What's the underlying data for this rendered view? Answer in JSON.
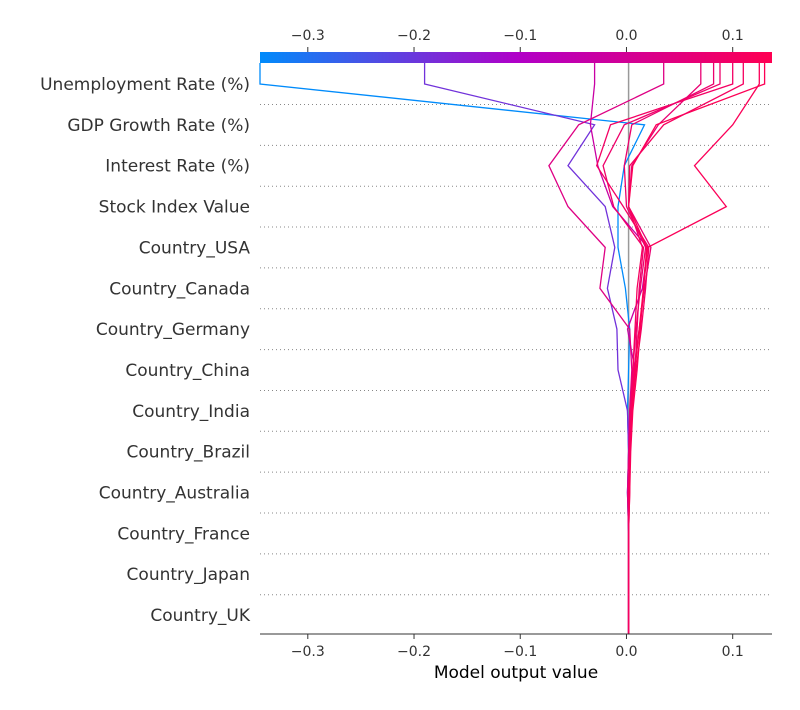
{
  "chart_data": {
    "type": "line",
    "subtype": "shap-decision-plot",
    "xlabel": "Model output value",
    "xlim": [
      -0.345,
      0.137
    ],
    "x_ticks": [
      -0.3,
      -0.2,
      -0.1,
      0.0,
      0.1
    ],
    "x_tick_labels": [
      "−0.3",
      "−0.2",
      "−0.1",
      "0.0",
      "0.1"
    ],
    "base_value": 0.002,
    "features": [
      "Unemployment Rate (%)",
      "GDP Growth Rate (%)",
      "Interest Rate (%)",
      "Stock Index Value",
      "Country_USA",
      "Country_Canada",
      "Country_Germany",
      "Country_China",
      "Country_India",
      "Country_Brazil",
      "Country_Australia",
      "Country_France",
      "Country_Japan",
      "Country_UK"
    ],
    "colormap": {
      "low": "#008bfb",
      "mid": "#b000c8",
      "high": "#ff0052"
    },
    "series": [
      {
        "values": [
          0.002,
          0.002,
          0.002,
          0.001,
          0.002,
          0.001,
          0.002,
          0.003,
          -0.001,
          -0.008,
          -0.008,
          -0.002,
          0.017,
          -0.345
        ]
      },
      {
        "values": [
          0.002,
          0.002,
          0.002,
          0.001,
          0.002,
          0.001,
          -0.008,
          -0.009,
          -0.018,
          -0.011,
          -0.02,
          -0.055,
          -0.03,
          -0.19
        ]
      },
      {
        "values": [
          0.002,
          0.002,
          0.002,
          0.002,
          0.002,
          0.003,
          0.008,
          0.001,
          0.015,
          0.02,
          -0.013,
          -0.027,
          -0.034,
          -0.03
        ]
      },
      {
        "values": [
          0.002,
          0.002,
          0.002,
          0.001,
          0.002,
          0.003,
          0.005,
          0.003,
          -0.025,
          -0.02,
          -0.055,
          -0.073,
          -0.045,
          0.035
        ]
      },
      {
        "values": [
          0.002,
          0.002,
          0.002,
          0.002,
          0.003,
          0.005,
          0.007,
          0.012,
          0.017,
          0.023,
          0.002,
          0.005,
          0.03,
          0.07
        ]
      },
      {
        "values": [
          0.002,
          0.002,
          0.002,
          0.002,
          0.003,
          0.004,
          0.008,
          0.01,
          0.012,
          0.016,
          -0.012,
          -0.022,
          -0.002,
          0.088
        ]
      },
      {
        "values": [
          0.002,
          0.002,
          0.002,
          0.003,
          0.003,
          0.005,
          0.009,
          0.014,
          0.018,
          0.021,
          -0.003,
          -0.028,
          -0.015,
          0.1
        ]
      },
      {
        "values": [
          0.002,
          0.002,
          0.002,
          0.003,
          0.004,
          0.006,
          0.01,
          0.013,
          0.016,
          0.02,
          0.094,
          0.064,
          0.1,
          0.125
        ]
      },
      {
        "values": [
          0.002,
          0.002,
          0.002,
          0.002,
          0.003,
          0.005,
          0.008,
          0.012,
          0.016,
          0.019,
          0.002,
          0.006,
          0.028,
          0.13
        ]
      },
      {
        "values": [
          0.002,
          0.002,
          0.002,
          0.002,
          0.003,
          0.004,
          0.006,
          0.009,
          0.013,
          0.018,
          0.0,
          -0.002,
          0.005,
          0.082
        ]
      },
      {
        "values": [
          0.002,
          0.002,
          0.002,
          0.002,
          0.003,
          0.004,
          0.006,
          0.008,
          0.01,
          0.015,
          0.002,
          0.003,
          0.035,
          0.11
        ]
      }
    ]
  }
}
